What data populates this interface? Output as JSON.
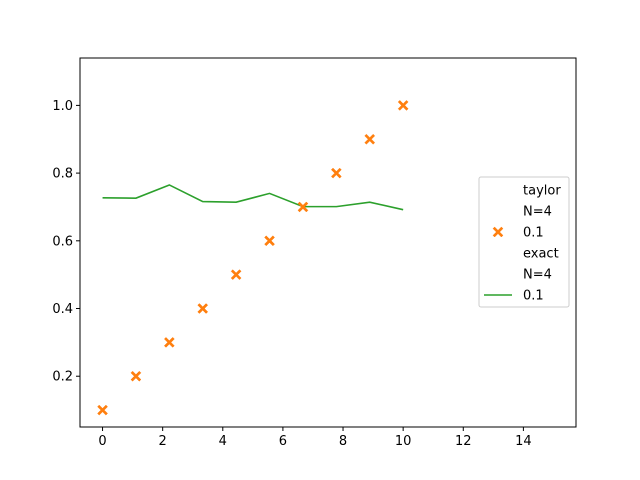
{
  "chart_data": {
    "type": "line",
    "title": "",
    "xlabel": "",
    "ylabel": "",
    "xlim": [
      -0.75,
      15.75
    ],
    "ylim": [
      0.05,
      1.14
    ],
    "xticks": [
      0,
      2,
      4,
      6,
      8,
      10,
      12,
      14
    ],
    "yticks": [
      0.2,
      0.4,
      0.6,
      0.8,
      1.0
    ],
    "ytick_labels": [
      "0.2",
      "0.4",
      "0.6",
      "0.8",
      "1.0"
    ],
    "grid": false,
    "legend_position": "right",
    "series": [
      {
        "kind": "scatter",
        "marker": "X",
        "color": "#ff7f0e",
        "x": [
          0,
          1.111,
          2.222,
          3.333,
          4.444,
          5.556,
          6.667,
          7.778,
          8.889,
          10
        ],
        "y": [
          0.1,
          0.2,
          0.3,
          0.4,
          0.5,
          0.6,
          0.7,
          0.8,
          0.9,
          1.0
        ]
      },
      {
        "kind": "line",
        "color": "#2ca02c",
        "x": [
          0,
          1.111,
          2.222,
          3.333,
          4.444,
          5.556,
          6.667,
          7.778,
          8.889,
          10
        ],
        "y": [
          0.727,
          0.726,
          0.765,
          0.716,
          0.714,
          0.74,
          0.701,
          0.701,
          0.714,
          0.692
        ]
      }
    ],
    "legend": [
      {
        "label": "taylor",
        "marker": "none"
      },
      {
        "label": "N=4",
        "marker": "none"
      },
      {
        "label": "0.1",
        "marker": "X",
        "color": "#ff7f0e"
      },
      {
        "label": "exact",
        "marker": "none"
      },
      {
        "label": "N=4",
        "marker": "none"
      },
      {
        "label": "0.1",
        "marker": "line",
        "color": "#2ca02c"
      }
    ]
  }
}
